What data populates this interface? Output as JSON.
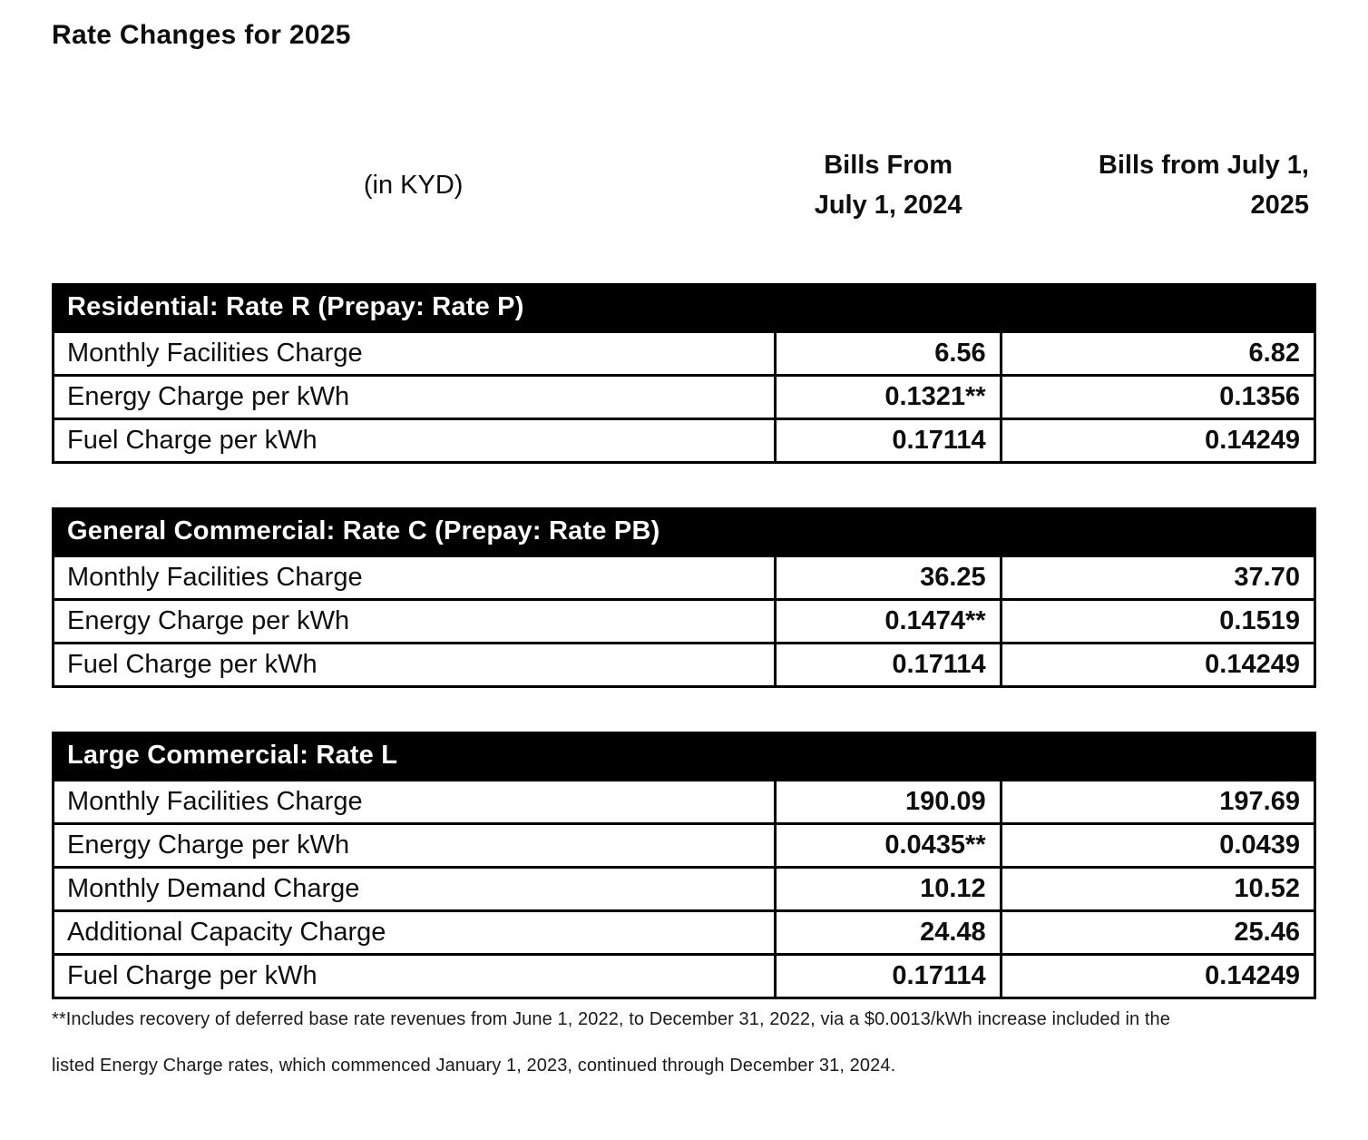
{
  "page": {
    "title": "Rate Changes for 2025"
  },
  "columns": {
    "unit_label": "(in KYD)",
    "col_2024": "Bills From\nJuly 1, 2024",
    "col_2025": "Bills from July 1,\n2025"
  },
  "tables": [
    {
      "header": "Residential: Rate R (Prepay: Rate P)",
      "rows": [
        {
          "label": "Monthly Facilities Charge",
          "v2024": "6.56",
          "v2025": "6.82"
        },
        {
          "label": "Energy Charge per kWh",
          "v2024": "0.1321**",
          "v2025": "0.1356"
        },
        {
          "label": "Fuel Charge per kWh",
          "v2024": "0.17114",
          "v2025": "0.14249"
        }
      ]
    },
    {
      "header": "General Commercial: Rate C (Prepay: Rate PB)",
      "rows": [
        {
          "label": "Monthly Facilities Charge",
          "v2024": "36.25",
          "v2025": "37.70"
        },
        {
          "label": "Energy Charge per kWh",
          "v2024": "0.1474**",
          "v2025": "0.1519"
        },
        {
          "label": "Fuel Charge per kWh",
          "v2024": "0.17114",
          "v2025": "0.14249"
        }
      ]
    },
    {
      "header": "Large Commercial: Rate L",
      "rows": [
        {
          "label": "Monthly Facilities Charge",
          "v2024": "190.09",
          "v2025": "197.69"
        },
        {
          "label": "Energy Charge per kWh",
          "v2024": "0.0435**",
          "v2025": "0.0439"
        },
        {
          "label": "Monthly Demand Charge",
          "v2024": "10.12",
          "v2025": "10.52"
        },
        {
          "label": "Additional Capacity Charge",
          "v2024": "24.48",
          "v2025": "25.46"
        },
        {
          "label": "Fuel Charge per kWh",
          "v2024": "0.17114",
          "v2025": "0.14249"
        }
      ]
    }
  ],
  "footnote": {
    "line1": "**Includes recovery of deferred base rate revenues from June 1, 2022, to December 31, 2022, via a $0.0013/kWh increase included in the",
    "line2": "listed Energy Charge rates, which commenced January 1, 2023, continued through December 31, 2024."
  },
  "colors": {
    "section_header_bg": "#000000",
    "section_header_text": "#ffffff",
    "border": "#000000",
    "text": "#0e0e0e",
    "background": "#ffffff"
  }
}
